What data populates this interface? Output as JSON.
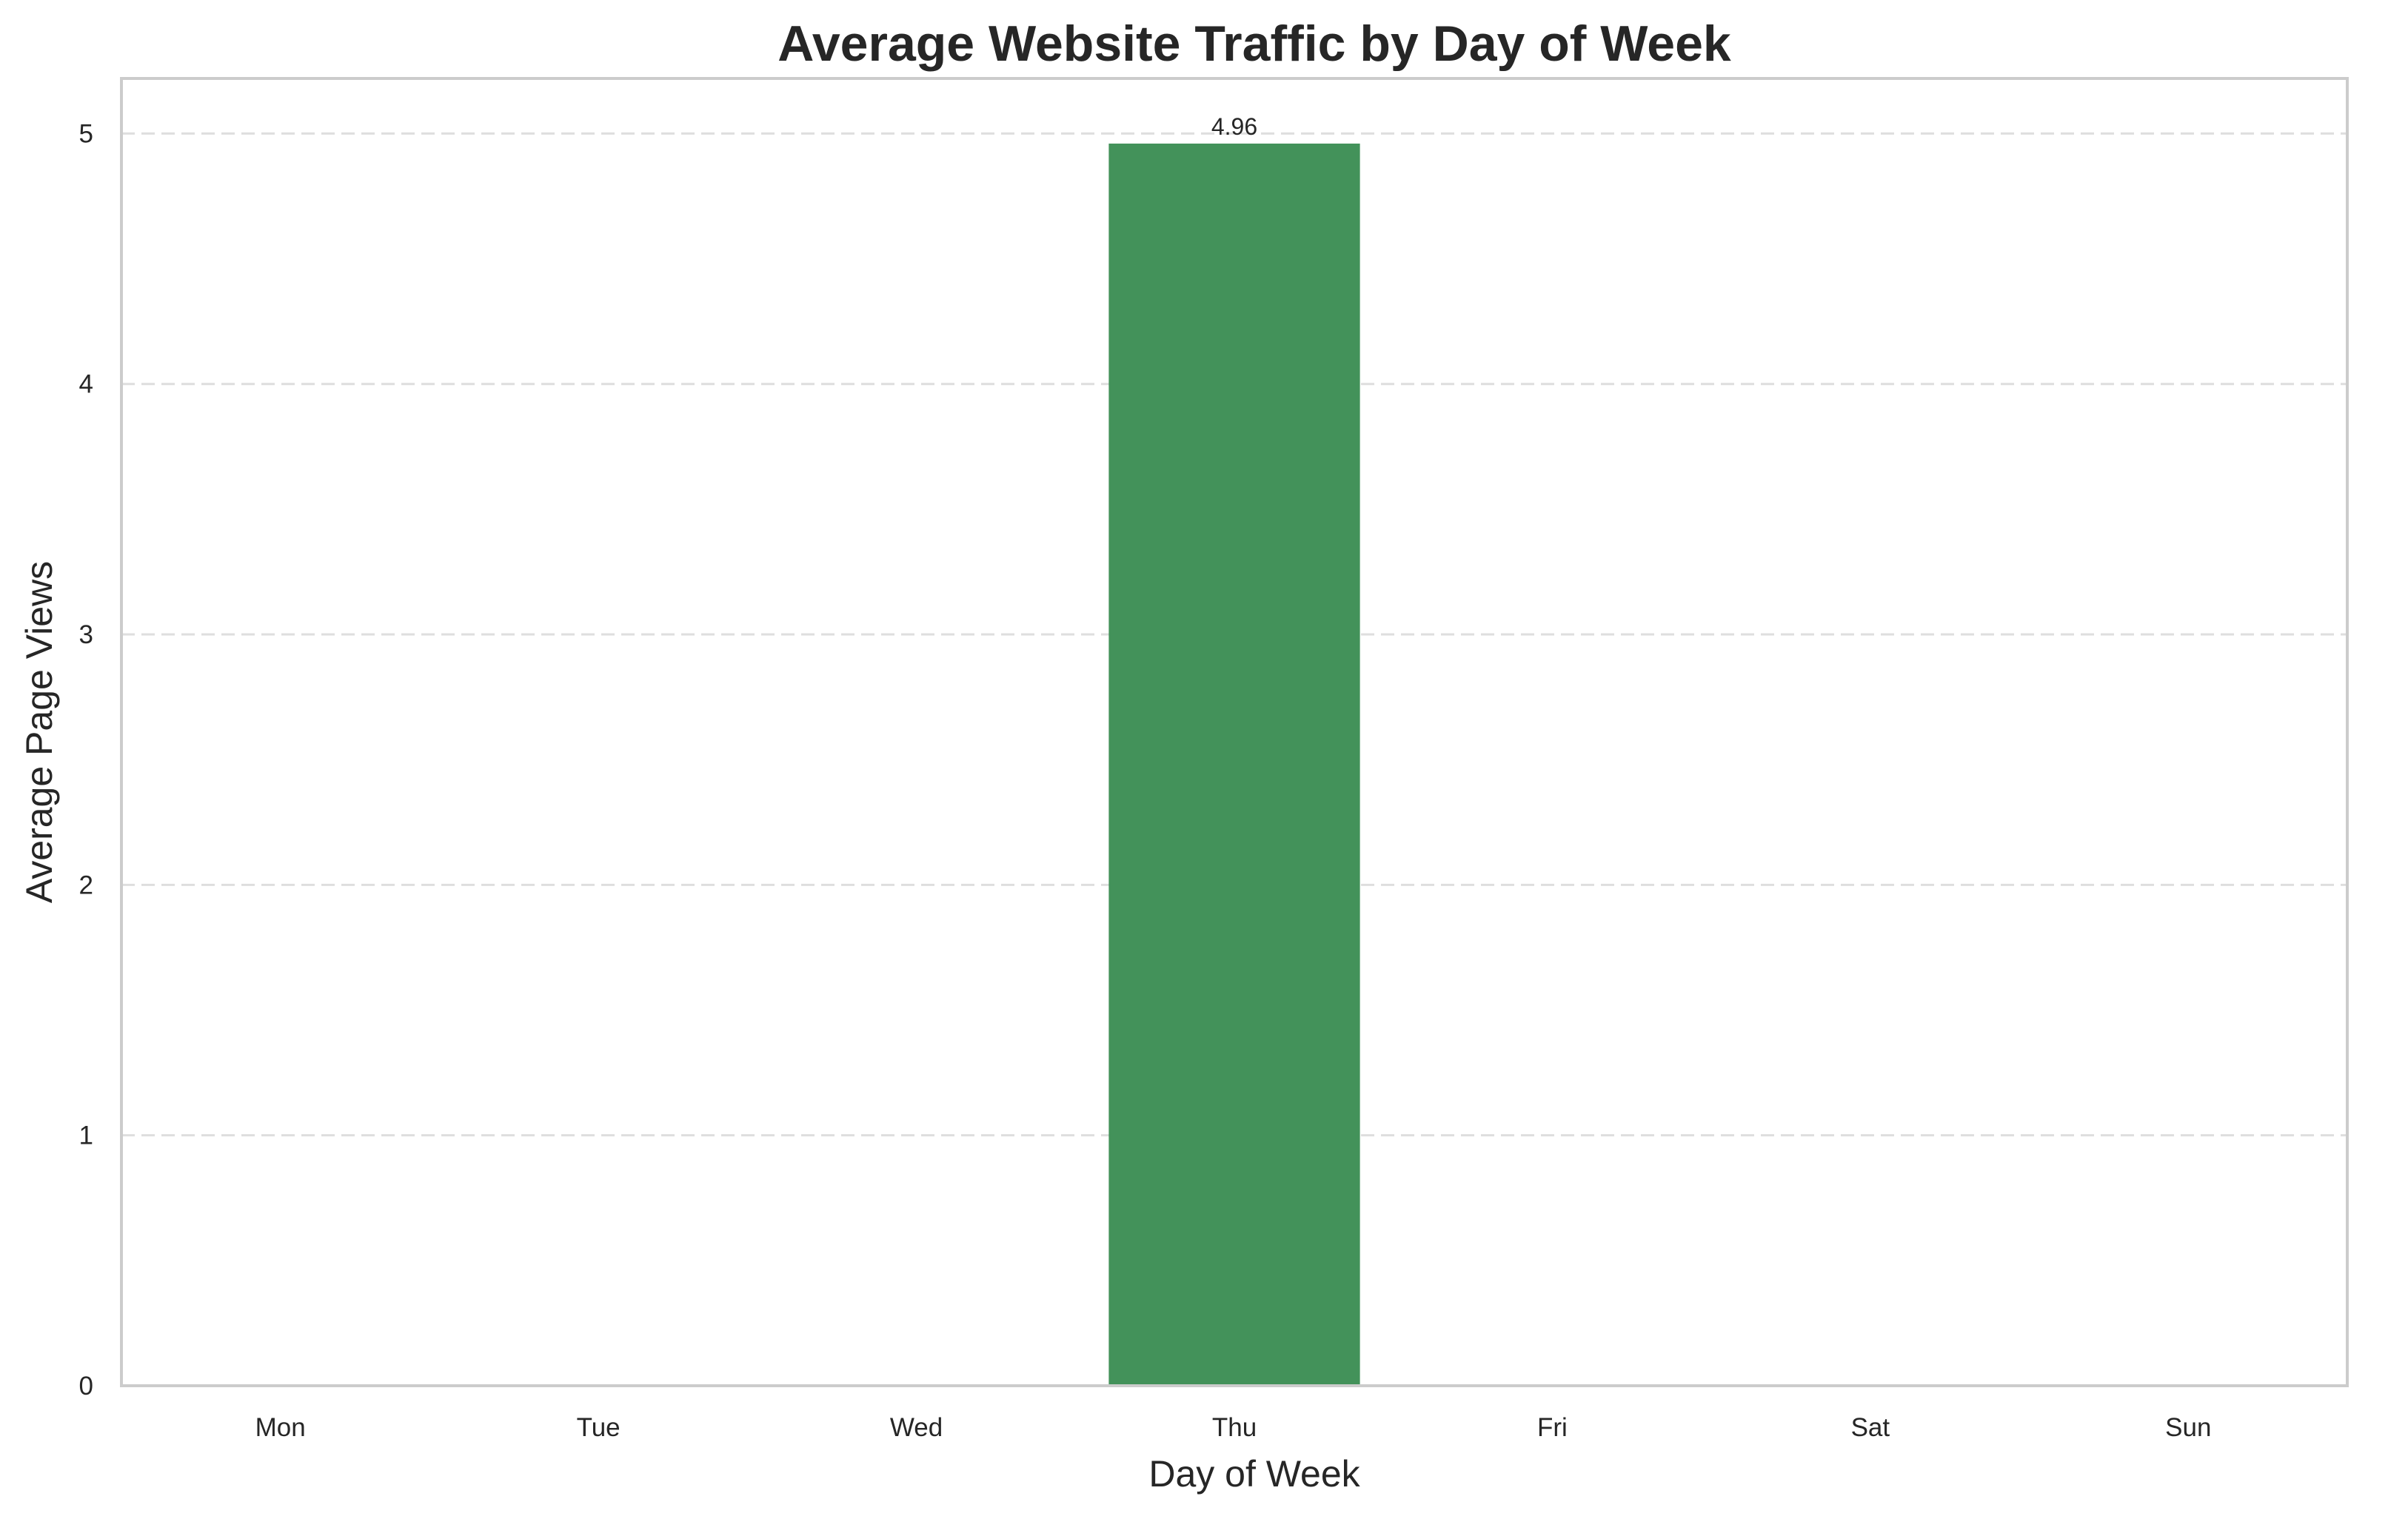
{
  "chart_data": {
    "type": "bar",
    "title": "Average Website Traffic by Day of Week",
    "xlabel": "Day of Week",
    "ylabel": "Average Page Views",
    "categories": [
      "Mon",
      "Tue",
      "Wed",
      "Thu",
      "Fri",
      "Sat",
      "Sun"
    ],
    "values": [
      0,
      0,
      0,
      4.96,
      0,
      0,
      0
    ],
    "data_labels": [
      "",
      "",
      "",
      "4.96",
      "",
      "",
      ""
    ],
    "ylim": [
      0,
      5.22
    ],
    "yticks": [
      0,
      1,
      2,
      3,
      4,
      5
    ],
    "grid": "horizontal-dashed",
    "bar_color": "#43925a",
    "gridline_color": "#dedede",
    "frame_color": "#cccccc",
    "text_color": "#262626"
  }
}
